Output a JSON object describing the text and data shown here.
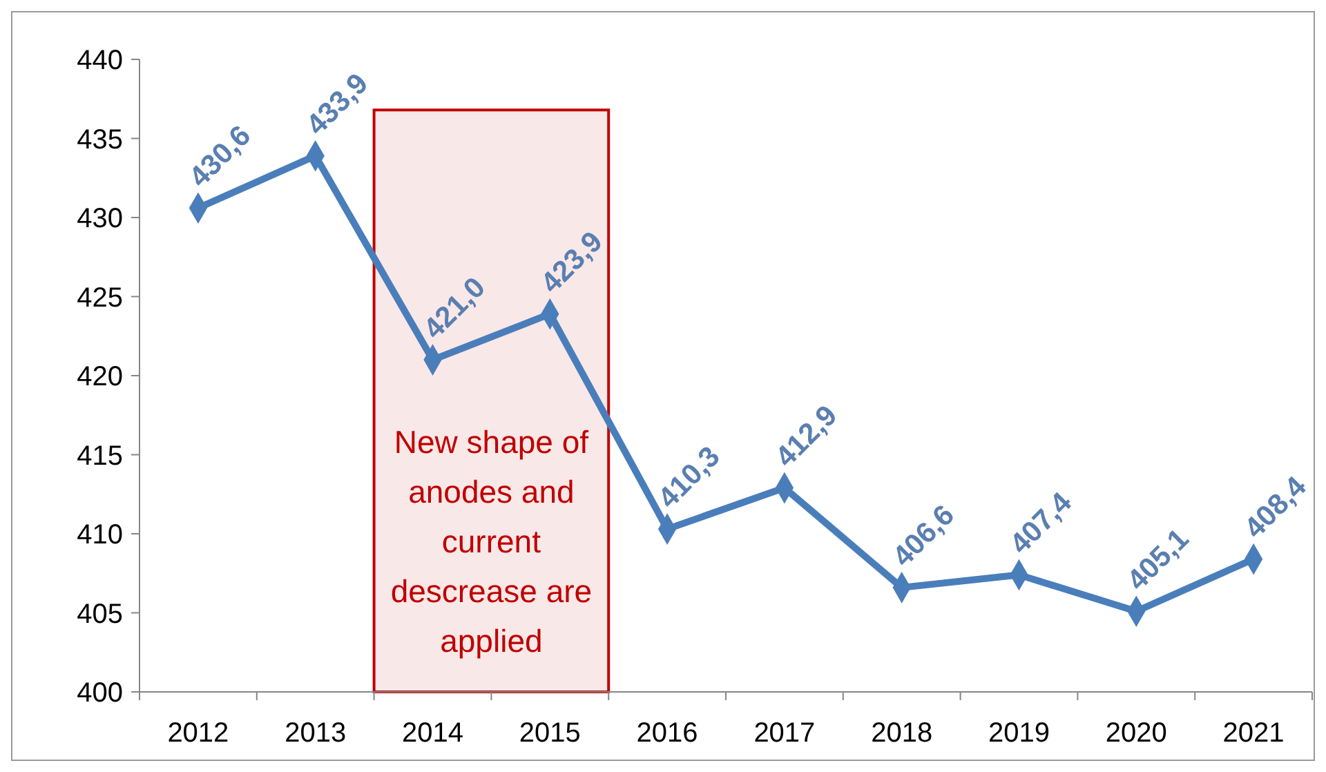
{
  "chart_data": {
    "type": "line",
    "categories": [
      "2012",
      "2013",
      "2014",
      "2015",
      "2016",
      "2017",
      "2018",
      "2019",
      "2020",
      "2021"
    ],
    "series": [
      {
        "color": "#4a7ebb",
        "values": [
          430.6,
          433.9,
          421.0,
          423.9,
          410.3,
          412.9,
          406.6,
          407.4,
          405.1,
          408.4
        ],
        "value_labels": [
          "430,6",
          "433,9",
          "421,0",
          "423,9",
          "410,3",
          "412,9",
          "406,6",
          "407,4",
          "405,1",
          "408,4"
        ]
      }
    ],
    "ylim": [
      400,
      440
    ],
    "yticks": [
      400,
      405,
      410,
      415,
      420,
      425,
      430,
      435,
      440
    ],
    "grid": false,
    "marker": "diamond",
    "line_style": "solid",
    "bands": [
      {
        "axis": "x",
        "from": "2014",
        "to": "2015",
        "label": "New shape of anodes and current descrease are applied",
        "color": "#c00000"
      }
    ]
  }
}
